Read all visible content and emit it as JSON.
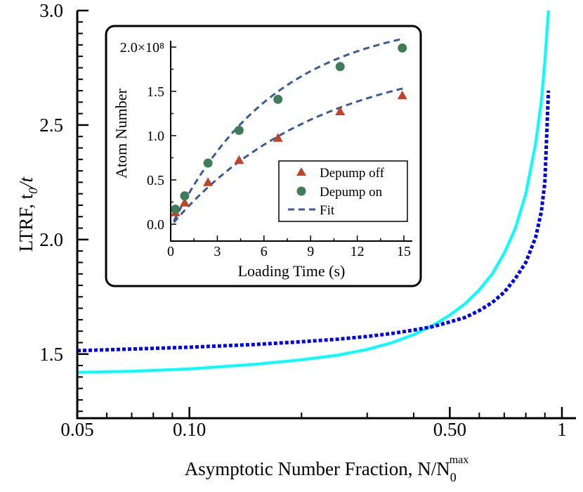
{
  "chart_data": [
    {
      "type": "line",
      "xlabel": "Asymptotic Number Fraction, N/N",
      "xlabel_sub": "0",
      "xlabel_sup": "max",
      "ylabel": "LTRF, t",
      "ylabel_sub": "0",
      "ylabel_tail": "/t",
      "x_scale": "log",
      "xlim": [
        0.05,
        1
      ],
      "ylim": [
        1.22,
        3.0
      ],
      "x_ticks": [
        0.05,
        0.1,
        0.5,
        1
      ],
      "x_tick_labels": [
        "0.05",
        "0.10",
        "0.50",
        "1"
      ],
      "y_ticks": [
        1.5,
        2.0,
        2.5,
        3.0
      ],
      "y_tick_labels": [
        "1.5",
        "2.0",
        "2.5",
        "3.0"
      ],
      "grid": false,
      "series": [
        {
          "color": "#00ffff",
          "style": "solid",
          "x": [
            0.05,
            0.07,
            0.1,
            0.15,
            0.2,
            0.25,
            0.3,
            0.35,
            0.4,
            0.45,
            0.5,
            0.55,
            0.6,
            0.65,
            0.7,
            0.75,
            0.8,
            0.85,
            0.88,
            0.9,
            0.92
          ],
          "y": [
            1.42,
            1.425,
            1.435,
            1.455,
            1.475,
            1.495,
            1.52,
            1.55,
            1.585,
            1.625,
            1.67,
            1.72,
            1.78,
            1.85,
            1.94,
            2.05,
            2.2,
            2.42,
            2.6,
            2.78,
            3.0
          ]
        },
        {
          "color": "#0000ee",
          "style": "dotted",
          "x": [
            0.05,
            0.07,
            0.1,
            0.15,
            0.2,
            0.25,
            0.3,
            0.35,
            0.4,
            0.45,
            0.5,
            0.55,
            0.6,
            0.65,
            0.7,
            0.75,
            0.8,
            0.85,
            0.88,
            0.9,
            0.92
          ],
          "y": [
            1.515,
            1.522,
            1.53,
            1.542,
            1.554,
            1.565,
            1.577,
            1.59,
            1.605,
            1.62,
            1.64,
            1.66,
            1.69,
            1.725,
            1.77,
            1.83,
            1.9,
            2.01,
            2.12,
            2.25,
            2.65
          ]
        }
      ]
    },
    {
      "type": "scatter",
      "xlabel": "Loading Time (s)",
      "ylabel": "Atom Number",
      "xlim": [
        0,
        15
      ],
      "ylim": [
        0,
        2.0
      ],
      "x_ticks": [
        0,
        3,
        6,
        9,
        12,
        15
      ],
      "x_tick_labels": [
        "0",
        "3",
        "6",
        "9",
        "12",
        "15"
      ],
      "y_ticks": [
        0.0,
        0.5,
        1.0,
        1.5,
        2.0
      ],
      "y_tick_labels": [
        "0.0",
        "0.5",
        "1.0",
        "1.5",
        "2.0×10⁸"
      ],
      "legend_position": "bottom-right",
      "series": [
        {
          "name": "Depump off",
          "marker": "triangle",
          "color": "#c0442c",
          "x": [
            0.3,
            0.9,
            2.4,
            4.4,
            6.9,
            10.9,
            14.9
          ],
          "y": [
            0.13,
            0.24,
            0.47,
            0.72,
            0.97,
            1.27,
            1.45
          ]
        },
        {
          "name": "Depump on",
          "marker": "circle",
          "color": "#3e7d57",
          "x": [
            0.3,
            0.9,
            2.4,
            4.4,
            6.9,
            10.9,
            14.9
          ],
          "y": [
            0.17,
            0.32,
            0.69,
            1.06,
            1.41,
            1.78,
            1.99
          ]
        },
        {
          "name": "Fit",
          "style": "dashed",
          "color": "#3a5b9b",
          "fits": [
            {
              "amplitude": 1.94,
              "tau": 9.5,
              "x0": 0.1
            },
            {
              "amplitude": 2.35,
              "tau": 6.7,
              "x0": 0.1
            }
          ]
        }
      ]
    }
  ]
}
